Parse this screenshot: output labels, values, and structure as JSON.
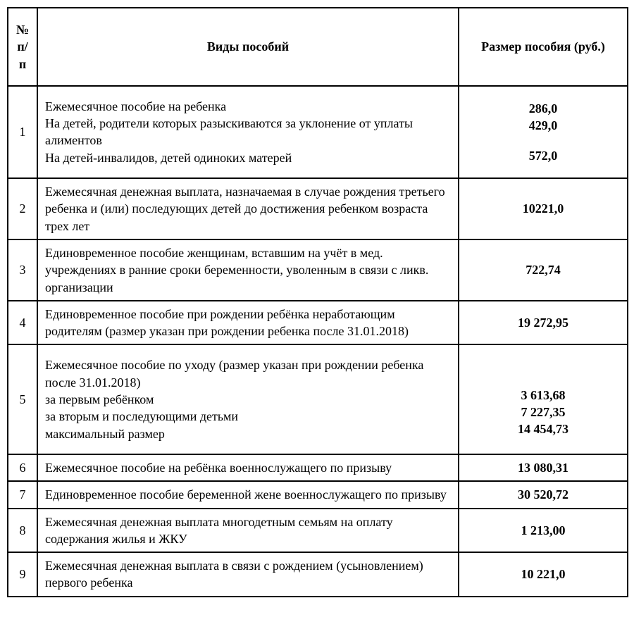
{
  "table": {
    "headers": {
      "col1_line1": "№",
      "col1_line2": "п/п",
      "col2": "Виды пособий",
      "col3": "Размер пособия (руб.)"
    },
    "rows": [
      {
        "num": "1",
        "desc_lines": [
          "Ежемесячное пособие на ребенка",
          "На детей, родители которых разыскиваются за уклонение от уплаты алиментов",
          "На детей-инвалидов, детей одиноких матерей"
        ],
        "amt_lines": [
          "286,0",
          "429,0",
          "",
          "572,0"
        ]
      },
      {
        "num": "2",
        "desc_lines": [
          "Ежемесячная денежная выплата, назначаемая в случае рождения третьего ребенка и (или) последующих детей до достижения ребенком возраста трех лет"
        ],
        "amt_lines": [
          "10221,0"
        ]
      },
      {
        "num": "3",
        "desc_lines": [
          "Единовременное пособие женщинам, вставшим на учёт в мед. учреждениях в ранние сроки беременности, уволенным в связи с ликв. организации"
        ],
        "amt_lines": [
          "722,74"
        ]
      },
      {
        "num": "4",
        "desc_lines": [
          "Единовременное пособие при рождении ребёнка неработающим родителям (размер указан при рождении ребенка после 31.01.2018)"
        ],
        "amt_lines": [
          "19 272,95"
        ]
      },
      {
        "num": "5",
        "desc_lines": [
          "Ежемесячное пособие по уходу (размер указан при рождении ребенка после 31.01.2018)",
          " за первым ребёнком",
          "за вторым и последующими детьми",
          "максимальный размер"
        ],
        "amt_lines": [
          "",
          "",
          "3 613,68",
          "7 227,35",
          "14 454,73"
        ]
      },
      {
        "num": "6",
        "desc_lines": [
          "Ежемесячное пособие на ребёнка военнослужащего по призыву"
        ],
        "amt_lines": [
          "13 080,31"
        ]
      },
      {
        "num": "7",
        "desc_lines": [
          "Единовременное пособие беременной жене военнослужащего по призыву"
        ],
        "amt_lines": [
          "30 520,72"
        ]
      },
      {
        "num": "8",
        "desc_lines": [
          "Ежемесячная денежная выплата многодетным семьям на оплату содержания жилья и ЖКУ"
        ],
        "amt_lines": [
          "1 213,00"
        ]
      },
      {
        "num": "9",
        "desc_lines": [
          "Ежемесячная денежная выплата в связи с рождением (усыновлением) первого ребенка"
        ],
        "amt_lines": [
          "10 221,0"
        ]
      }
    ]
  }
}
